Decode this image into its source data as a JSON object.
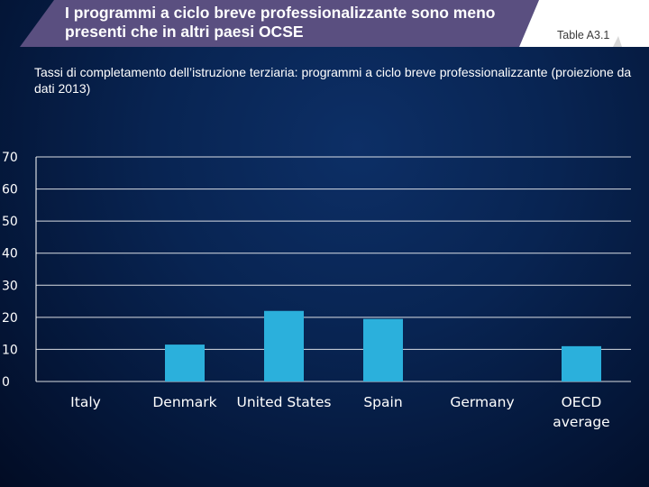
{
  "header": {
    "title": "I programmi a ciclo breve professionalizzante sono meno presenti che in altri paesi OCSE",
    "table_ref": "Table A3.1"
  },
  "subtitle": "Tassi di completamento dell’istruzione terziaria: programmi a ciclo breve professionalizzante (proiezione da dati 2013)",
  "colors": {
    "bar": "#2bb0dc",
    "banner": "#5a4f80",
    "gridline": "#ffffff"
  },
  "chart_data": {
    "type": "bar",
    "title": "Tassi di completamento dell’istruzione terziaria: programmi a ciclo breve professionalizzante (proiezione da dati 2013)",
    "categories": [
      "Italy",
      "Denmark",
      "United States",
      "Spain",
      "Germany",
      "OECD average"
    ],
    "category_lines": [
      [
        "Italy"
      ],
      [
        "Denmark"
      ],
      [
        "United States"
      ],
      [
        "Spain"
      ],
      [
        "Germany"
      ],
      [
        "OECD",
        "average"
      ]
    ],
    "values": [
      0,
      11.5,
      22,
      19.5,
      0,
      11
    ],
    "ylim": [
      0,
      70
    ],
    "yticks": [
      0,
      10,
      20,
      30,
      40,
      50,
      60,
      70
    ],
    "xlabel": "",
    "ylabel": "",
    "grid": true,
    "legend": "none"
  }
}
